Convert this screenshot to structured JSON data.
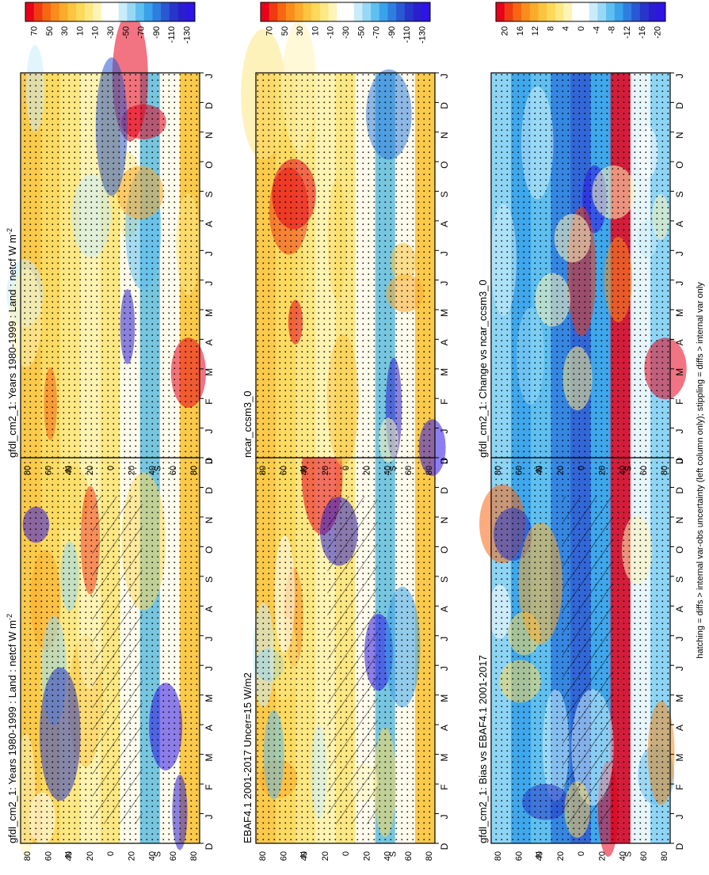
{
  "figure": {
    "footnote": "hatching = diffs > internal var-obs uncertainty (left column only); stippling = diffs > internal var only"
  },
  "palettes": {
    "field": [
      "#e8001a",
      "#f03a12",
      "#f76612",
      "#fa8c1c",
      "#fbaa2c",
      "#fcc440",
      "#fdd85a",
      "#fde884",
      "#fff4b8",
      "#ffffff",
      "#ffffff",
      "#c9ecfa",
      "#96d8f6",
      "#5fbff0",
      "#3aa2ea",
      "#2f7ddf",
      "#2a57d2",
      "#2736c8",
      "#2a1ecf",
      "#2e14e5"
    ],
    "difference": [
      "#e8001a",
      "#f03a12",
      "#f76612",
      "#fa8c1c",
      "#fbaa2c",
      "#fcc440",
      "#fdd85a",
      "#fde884",
      "#fff4b8",
      "#ffffff",
      "#ffffff",
      "#c9ecfa",
      "#96d8f6",
      "#5fbff0",
      "#3aa2ea",
      "#2f7ddf",
      "#2a57d2",
      "#2736c8",
      "#2a1ecf",
      "#2e14e5"
    ]
  },
  "chart_data": [
    {
      "id": "left-top",
      "type": "heatmap",
      "title": "gfdl_cm2_1: Years 1980-1999 : Land : netcf W m",
      "title_superscript": "-2",
      "months": [
        "D",
        "J",
        "F",
        "M",
        "A",
        "M",
        "J",
        "J",
        "A",
        "S",
        "O",
        "N",
        "D",
        "J"
      ],
      "lat_labels": [
        "80",
        "60",
        "40",
        "20",
        "0",
        "20",
        "40",
        "60",
        "80"
      ],
      "lat_letters": {
        "north": "N",
        "south": "S"
      },
      "colorbar_labels": [
        "70",
        "50",
        "30",
        "10",
        "-10",
        "-30",
        "-50",
        "-70",
        "-90",
        "-110",
        "-130"
      ],
      "hatching": true,
      "palette": "field"
    },
    {
      "id": "left-middle",
      "type": "heatmap",
      "title": "EBAF4.1 2001-2017 Uncer=15 W/m2",
      "months": [
        "D",
        "J",
        "F",
        "M",
        "A",
        "M",
        "J",
        "J",
        "A",
        "S",
        "O",
        "N",
        "D",
        "J"
      ],
      "lat_labels": [
        "80",
        "60",
        "40",
        "20",
        "0",
        "20",
        "40",
        "60",
        "80"
      ],
      "lat_letters": {
        "north": "N",
        "south": "S"
      },
      "colorbar_labels": [
        "70",
        "50",
        "30",
        "10",
        "-10",
        "-30",
        "-50",
        "-70",
        "-90",
        "-110",
        "-130"
      ],
      "hatching": true,
      "palette": "field"
    },
    {
      "id": "left-bottom",
      "type": "heatmap",
      "title": "gfdl_cm2_1: Bias vs EBAF4.1 2001-2017",
      "months": [
        "D",
        "J",
        "F",
        "M",
        "A",
        "M",
        "J",
        "J",
        "A",
        "S",
        "O",
        "N",
        "D",
        "J"
      ],
      "lat_labels": [
        "80",
        "60",
        "40",
        "20",
        "0",
        "20",
        "40",
        "60",
        "80"
      ],
      "lat_letters": {
        "north": "N",
        "south": "S"
      },
      "colorbar_labels": [
        "20",
        "16",
        "12",
        "8",
        "4",
        "0",
        "-4",
        "-8",
        "-12",
        "-16",
        "-20"
      ],
      "hatching": true,
      "palette": "difference"
    },
    {
      "id": "right-top",
      "type": "heatmap",
      "title": "gfdl_cm2_1: Years 1980-1999 : Land : netcf W m",
      "title_superscript": "-2",
      "months": [
        "D",
        "J",
        "F",
        "M",
        "A",
        "M",
        "J",
        "J",
        "A",
        "S",
        "O",
        "N",
        "D",
        "J"
      ],
      "lat_labels": [
        "80",
        "60",
        "40",
        "20",
        "0",
        "20",
        "40",
        "60",
        "80"
      ],
      "lat_letters": {
        "north": "N",
        "south": "S"
      },
      "colorbar_labels": [
        "70",
        "50",
        "30",
        "10",
        "-10",
        "-30",
        "-50",
        "-70",
        "-90",
        "-110",
        "-130"
      ],
      "hatching": false,
      "palette": "field"
    },
    {
      "id": "right-middle",
      "type": "heatmap",
      "title": "ncar_ccsm3_0",
      "months": [
        "D",
        "J",
        "F",
        "M",
        "A",
        "M",
        "J",
        "J",
        "A",
        "S",
        "O",
        "N",
        "D",
        "J"
      ],
      "lat_labels": [
        "80",
        "60",
        "40",
        "20",
        "0",
        "20",
        "40",
        "60",
        "80"
      ],
      "lat_letters": {
        "north": "N",
        "south": "S"
      },
      "colorbar_labels": [
        "70",
        "50",
        "30",
        "10",
        "-10",
        "-30",
        "-50",
        "-70",
        "-90",
        "-110",
        "-130"
      ],
      "hatching": false,
      "palette": "field"
    },
    {
      "id": "right-bottom",
      "type": "heatmap",
      "title": "gfdl_cm2_1: Change vs ncar_ccsm3_0",
      "months": [
        "D",
        "J",
        "F",
        "M",
        "A",
        "M",
        "J",
        "J",
        "A",
        "S",
        "O",
        "N",
        "D",
        "J"
      ],
      "lat_labels": [
        "80",
        "60",
        "40",
        "20",
        "0",
        "20",
        "40",
        "60",
        "80"
      ],
      "lat_letters": {
        "north": "N",
        "south": "S"
      },
      "colorbar_labels": [
        "20",
        "16",
        "12",
        "8",
        "4",
        "0",
        "-4",
        "-8",
        "-12",
        "-16",
        "-20"
      ],
      "hatching": false,
      "palette": "difference"
    }
  ]
}
